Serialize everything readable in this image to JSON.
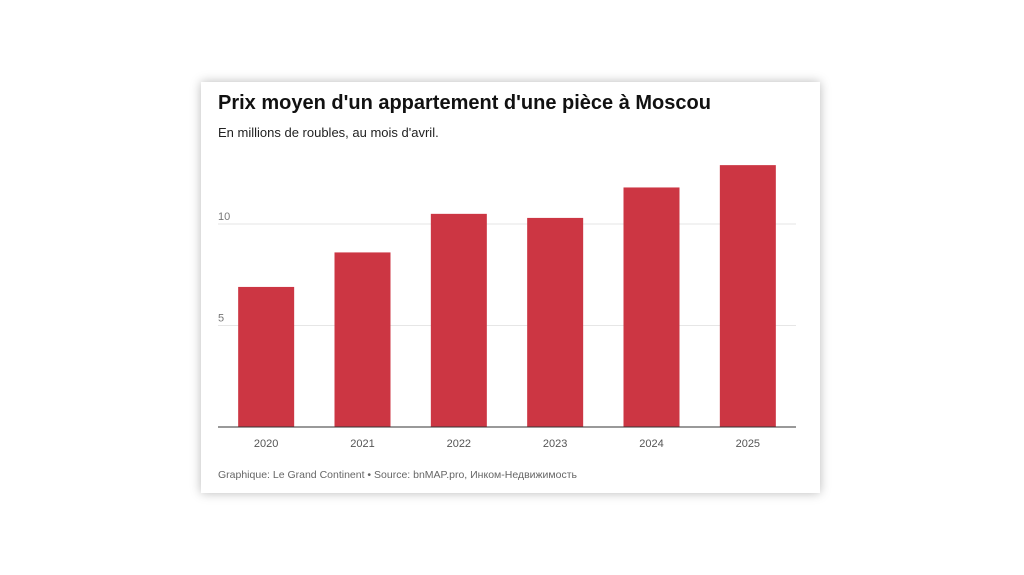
{
  "header": {
    "title": "Prix moyen d'un appartement d'une pièce à Moscou",
    "subtitle": "En millions de roubles, au mois d'avril."
  },
  "footer": {
    "credit": "Graphique: Le Grand Continent • Source: bnMAP.pro, Инком-Недвижимость"
  },
  "colors": {
    "bar": "#cc3643",
    "grid": "#e6e6e6",
    "axis": "#333333",
    "tick_text": "#777777"
  },
  "chart_data": {
    "type": "bar",
    "title": "Prix moyen d'un appartement d'une pièce à Moscou",
    "subtitle": "En millions de roubles, au mois d'avril.",
    "categories": [
      "2020",
      "2021",
      "2022",
      "2023",
      "2024",
      "2025"
    ],
    "values": [
      6.9,
      8.6,
      10.5,
      10.3,
      11.8,
      12.9
    ],
    "xlabel": "",
    "ylabel": "",
    "ylim": [
      0,
      13
    ],
    "yticks": [
      "5",
      "10"
    ],
    "grid": true,
    "legend": "none"
  }
}
